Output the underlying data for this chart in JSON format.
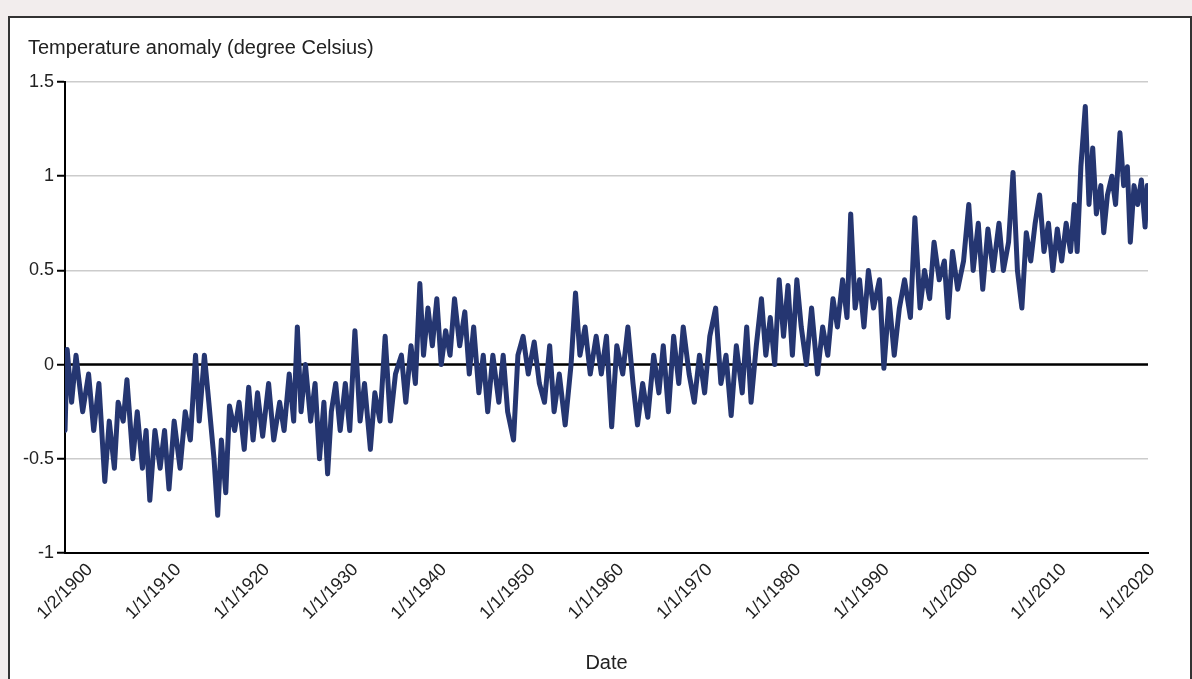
{
  "chart_data": {
    "type": "line",
    "ylabel": "Temperature anomaly (degree Celsius)",
    "xlabel": "Date",
    "x": [
      "1900-01-02",
      "1900-04",
      "1900-10",
      "1901-04",
      "1902-01",
      "1902-09",
      "1903-04",
      "1903-11",
      "1904-07",
      "1905-01",
      "1905-08",
      "1906-01",
      "1906-08",
      "1907-01",
      "1907-09",
      "1908-03",
      "1908-10",
      "1909-03",
      "1909-08",
      "1910-03",
      "1910-10",
      "1911-04",
      "1911-10",
      "1912-05",
      "1913-01",
      "1913-08",
      "1914-03",
      "1914-10",
      "1915-03",
      "1915-10",
      "1916-04",
      "1916-11",
      "1917-04",
      "1917-09",
      "1918-03",
      "1918-08",
      "1919-03",
      "1919-09",
      "1920-04",
      "1920-10",
      "1921-04",
      "1921-10",
      "1922-05",
      "1923-01",
      "1923-08",
      "1924-04",
      "1924-10",
      "1925-05",
      "1925-11",
      "1926-04",
      "1926-09",
      "1927-03",
      "1927-10",
      "1928-04",
      "1928-10",
      "1929-04",
      "1929-09",
      "1930-02",
      "1930-08",
      "1931-02",
      "1931-09",
      "1932-03",
      "1932-10",
      "1933-05",
      "1933-11",
      "1934-07",
      "1935-01",
      "1935-08",
      "1936-03",
      "1936-10",
      "1937-05",
      "1938-01",
      "1938-07",
      "1939-02",
      "1939-08",
      "1940-02",
      "1940-07",
      "1941-01",
      "1941-07",
      "1942-01",
      "1942-07",
      "1943-01",
      "1943-07",
      "1944-01",
      "1944-08",
      "1945-03",
      "1945-09",
      "1946-03",
      "1946-10",
      "1947-04",
      "1947-10",
      "1948-05",
      "1949-01",
      "1949-07",
      "1950-01",
      "1950-09",
      "1951-03",
      "1951-10",
      "1952-05",
      "1953-01",
      "1953-08",
      "1954-03",
      "1954-10",
      "1955-04",
      "1955-11",
      "1956-07",
      "1957-03",
      "1957-09",
      "1958-03",
      "1958-10",
      "1959-05",
      "1960-01",
      "1960-08",
      "1961-03",
      "1961-10",
      "1962-05",
      "1963-01",
      "1963-08",
      "1964-03",
      "1964-09",
      "1965-04",
      "1965-11",
      "1966-07",
      "1967-02",
      "1967-08",
      "1968-03",
      "1968-10",
      "1969-05",
      "1969-11",
      "1970-07",
      "1971-02",
      "1971-09",
      "1972-04",
      "1972-11",
      "1973-07",
      "1974-02",
      "1974-09",
      "1975-04",
      "1975-11",
      "1976-07",
      "1977-01",
      "1977-07",
      "1978-02",
      "1978-09",
      "1979-03",
      "1979-09",
      "1980-03",
      "1980-09",
      "1981-03",
      "1981-09",
      "1982-03",
      "1982-09",
      "1983-03",
      "1983-10",
      "1984-05",
      "1985-01",
      "1985-08",
      "1986-03",
      "1986-10",
      "1987-04",
      "1987-11",
      "1988-05",
      "1988-10",
      "1989-04",
      "1989-10",
      "1990-04",
      "1990-10",
      "1991-05",
      "1992-01",
      "1992-07",
      "1993-02",
      "1993-09",
      "1994-04",
      "1994-11",
      "1995-07",
      "1996-01",
      "1996-08",
      "1997-02",
      "1997-09",
      "1998-03",
      "1998-10",
      "1999-05",
      "1999-10",
      "2000-04",
      "2000-11",
      "2001-07",
      "2002-02",
      "2002-08",
      "2003-03",
      "2003-09",
      "2004-04",
      "2004-11",
      "2005-07",
      "2006-01",
      "2006-08",
      "2007-02",
      "2007-08",
      "2008-02",
      "2008-08",
      "2009-02",
      "2009-08",
      "2010-02",
      "2010-08",
      "2011-02",
      "2011-08",
      "2012-02",
      "2012-08",
      "2013-02",
      "2013-08",
      "2014-01",
      "2014-05",
      "2014-10",
      "2015-04",
      "2015-09",
      "2016-02",
      "2016-07",
      "2017-01",
      "2017-05",
      "2017-10",
      "2018-04",
      "2018-09",
      "2019-03",
      "2019-08",
      "2020-01",
      "2020-05",
      "2020-10",
      "2021-03",
      "2021-08",
      "2022-01",
      "2022-04"
    ],
    "values": [
      -0.35,
      0.08,
      -0.2,
      0.05,
      -0.25,
      -0.05,
      -0.35,
      -0.1,
      -0.62,
      -0.3,
      -0.55,
      -0.2,
      -0.3,
      -0.08,
      -0.5,
      -0.25,
      -0.55,
      -0.35,
      -0.72,
      -0.35,
      -0.55,
      -0.35,
      -0.66,
      -0.3,
      -0.55,
      -0.25,
      -0.4,
      0.05,
      -0.3,
      0.05,
      -0.2,
      -0.5,
      -0.8,
      -0.4,
      -0.68,
      -0.22,
      -0.35,
      -0.2,
      -0.45,
      -0.12,
      -0.4,
      -0.15,
      -0.38,
      -0.1,
      -0.4,
      -0.2,
      -0.35,
      -0.05,
      -0.3,
      0.2,
      -0.25,
      0.0,
      -0.3,
      -0.1,
      -0.5,
      -0.2,
      -0.58,
      -0.25,
      -0.1,
      -0.35,
      -0.1,
      -0.35,
      0.18,
      -0.3,
      -0.1,
      -0.45,
      -0.15,
      -0.3,
      0.15,
      -0.3,
      -0.05,
      0.05,
      -0.2,
      0.1,
      -0.1,
      0.43,
      0.05,
      0.3,
      0.1,
      0.35,
      0.0,
      0.18,
      0.05,
      0.35,
      0.1,
      0.28,
      -0.05,
      0.2,
      -0.15,
      0.05,
      -0.25,
      0.05,
      -0.2,
      0.05,
      -0.25,
      -0.4,
      0.05,
      0.15,
      -0.05,
      0.12,
      -0.1,
      -0.2,
      0.1,
      -0.25,
      -0.05,
      -0.32,
      0.0,
      0.38,
      0.05,
      0.2,
      -0.05,
      0.15,
      -0.05,
      0.15,
      -0.33,
      0.1,
      -0.05,
      0.2,
      -0.1,
      -0.32,
      -0.1,
      -0.28,
      0.05,
      -0.15,
      0.1,
      -0.25,
      0.15,
      -0.1,
      0.2,
      -0.05,
      -0.2,
      0.05,
      -0.15,
      0.15,
      0.3,
      -0.1,
      0.05,
      -0.27,
      0.1,
      -0.15,
      0.2,
      -0.2,
      0.1,
      0.35,
      0.05,
      0.25,
      0.0,
      0.45,
      0.15,
      0.42,
      0.05,
      0.45,
      0.2,
      0.0,
      0.3,
      -0.05,
      0.2,
      0.05,
      0.35,
      0.2,
      0.45,
      0.25,
      0.8,
      0.3,
      0.45,
      0.2,
      0.5,
      0.3,
      0.45,
      -0.02,
      0.35,
      0.05,
      0.3,
      0.45,
      0.25,
      0.78,
      0.3,
      0.5,
      0.35,
      0.65,
      0.45,
      0.55,
      0.25,
      0.6,
      0.4,
      0.55,
      0.85,
      0.5,
      0.75,
      0.4,
      0.72,
      0.5,
      0.75,
      0.5,
      0.65,
      1.02,
      0.5,
      0.3,
      0.7,
      0.55,
      0.75,
      0.9,
      0.6,
      0.75,
      0.5,
      0.72,
      0.55,
      0.75,
      0.6,
      0.85,
      0.6,
      1.05,
      1.37,
      0.85,
      1.15,
      0.8,
      0.95,
      0.7,
      0.9,
      1.0,
      0.85,
      1.23,
      0.95,
      1.05,
      0.65,
      0.95,
      0.85,
      0.98,
      0.73,
      0.95
    ],
    "color": "#253671",
    "xlim": [
      "1900-01-02",
      "2022-05"
    ],
    "ylim": [
      -1,
      1.5
    ],
    "yticks": [
      -1,
      -0.5,
      0,
      0.5,
      1,
      1.5
    ],
    "xticks": [
      {
        "value": "1900-01-02",
        "label": "1/2/1900"
      },
      {
        "value": "1910-01-01",
        "label": "1/1/1910"
      },
      {
        "value": "1920-01-01",
        "label": "1/1/1920"
      },
      {
        "value": "1930-01-01",
        "label": "1/1/1930"
      },
      {
        "value": "1940-01-01",
        "label": "1/1/1940"
      },
      {
        "value": "1950-01-01",
        "label": "1/1/1950"
      },
      {
        "value": "1960-01-01",
        "label": "1/1/1960"
      },
      {
        "value": "1970-01-01",
        "label": "1/1/1970"
      },
      {
        "value": "1980-01-01",
        "label": "1/1/1980"
      },
      {
        "value": "1990-01-01",
        "label": "1/1/1990"
      },
      {
        "value": "2000-01-01",
        "label": "1/1/2000"
      },
      {
        "value": "2010-01-01",
        "label": "1/1/2010"
      },
      {
        "value": "2020-01-01",
        "label": "1/1/2020"
      }
    ],
    "grid": "y",
    "legend": false,
    "marker": "none",
    "line_style": "solid",
    "ref_lines": [
      {
        "axis": "y",
        "value": 0,
        "color": "#000000"
      }
    ]
  }
}
